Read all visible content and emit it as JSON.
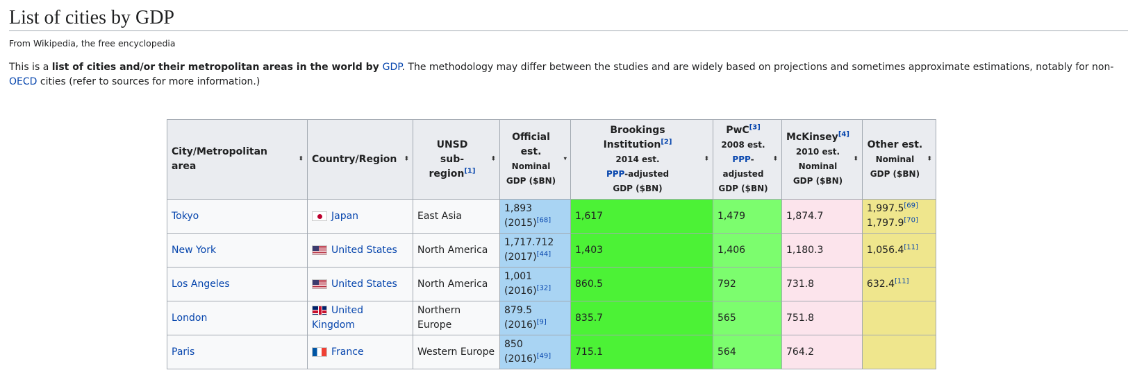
{
  "title": "List of cities by GDP",
  "tagline": "From Wikipedia, the free encyclopedia",
  "intro": {
    "p1": "This is a ",
    "bold": "list of cities and/or their metropolitan areas in the world by ",
    "link_gdp": "GDP",
    "p2": ". The methodology may differ between the studies and are widely based on projections and sometimes approximate estimations, notably for non-",
    "link_oecd": "OECD",
    "p3": " cities (refer to sources for more information.)"
  },
  "headers": {
    "city": "City/Metropolitan area",
    "country": "Country/Region",
    "unsd1": "UNSD",
    "unsd2": "sub-region",
    "unsd_ref": "[1]",
    "off1": "Official",
    "off2": "est.",
    "off3": "Nominal",
    "off4": "GDP ($BN)",
    "brk1": "Brookings Institution",
    "brk_ref": "[2]",
    "brk2": "2014 est.",
    "brk3_link": "PPP",
    "brk3": "-adjusted",
    "brk4": "GDP ($BN)",
    "pwc1": "PwC",
    "pwc_ref": "[3]",
    "pwc2": "2008 est.",
    "pwc3_link": "PPP",
    "pwc3": "-",
    "pwc4": "adjusted",
    "pwc5": "GDP ($BN)",
    "mck1": "McKinsey",
    "mck_ref": "[4]",
    "mck2": "2010 est.",
    "mck3": "Nominal",
    "mck4": "GDP ($BN)",
    "oth1": "Other est.",
    "oth2": "Nominal",
    "oth3": "GDP ($BN)"
  },
  "rows": [
    {
      "city": "Tokyo",
      "country": "Japan",
      "flag": "jp",
      "region": "East Asia",
      "off": "1,893",
      "off_year": "(2015)",
      "off_ref": "[68]",
      "brk": "1,617",
      "pwc": "1,479",
      "mck": "1,874.7",
      "oth1": "1,997.5",
      "oth1_ref": "[69]",
      "oth2": "1,797.9",
      "oth2_ref": "[70]"
    },
    {
      "city": "New York",
      "country": "United States",
      "flag": "us",
      "region": "North America",
      "off": "1,717.712",
      "off_year": "(2017)",
      "off_ref": "[44]",
      "brk": "1,403",
      "pwc": "1,406",
      "mck": "1,180.3",
      "oth1": "1,056.4",
      "oth1_ref": "[11]",
      "oth2": "",
      "oth2_ref": ""
    },
    {
      "city": "Los Angeles",
      "country": "United States",
      "flag": "us",
      "region": "North America",
      "off": "1,001",
      "off_year": "(2016)",
      "off_ref": "[32]",
      "brk": "860.5",
      "pwc": "792",
      "mck": "731.8",
      "oth1": "632.4",
      "oth1_ref": "[11]",
      "oth2": "",
      "oth2_ref": ""
    },
    {
      "city": "London",
      "country": "United Kingdom",
      "flag": "uk",
      "region": "Northern Europe",
      "off": "879.5",
      "off_year": "(2016)",
      "off_ref": "[9]",
      "brk": "835.7",
      "pwc": "565",
      "mck": "751.8",
      "oth1": "",
      "oth1_ref": "",
      "oth2": "",
      "oth2_ref": ""
    },
    {
      "city": "Paris",
      "country": "France",
      "flag": "fr",
      "region": "Western Europe",
      "off": "850",
      "off_year": "(2016)",
      "off_ref": "[49]",
      "brk": "715.1",
      "pwc": "564",
      "mck": "764.2",
      "oth1": "",
      "oth1_ref": "",
      "oth2": "",
      "oth2_ref": ""
    }
  ]
}
